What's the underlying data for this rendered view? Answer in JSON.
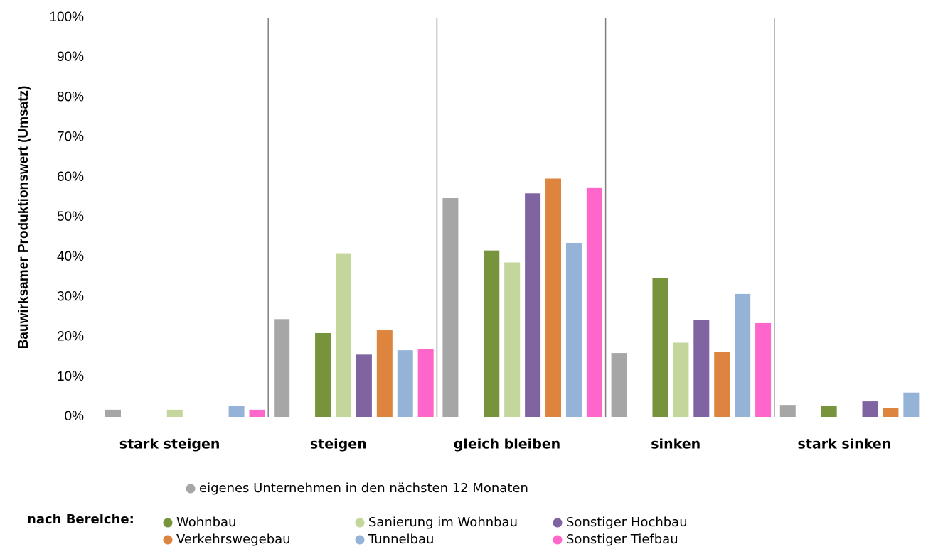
{
  "chart_data": {
    "type": "bar",
    "y_label": "Bauwirksamer Produktionswert (Umsatz)",
    "legend_title": "nach Bereiche:",
    "categories": [
      "stark steigen",
      "steigen",
      "gleich bleiben",
      "sinken",
      "stark sinken"
    ],
    "series": [
      {
        "name": "eigenes Unternehmen in den nächsten 12 Monaten",
        "color": "#a6a6a6",
        "values": [
          1.8,
          24.5,
          54.8,
          16,
          3
        ]
      },
      {
        "name": "Wohnbau",
        "color": "#77933c",
        "values": [
          0,
          21,
          41.7,
          34.7,
          2.7
        ]
      },
      {
        "name": "Sanierung im Wohnbau",
        "color": "#c3d69b",
        "values": [
          1.8,
          41,
          38.7,
          18.6,
          0
        ]
      },
      {
        "name": "Sonstiger Hochbau",
        "color": "#8064a2",
        "values": [
          0,
          15.6,
          56,
          24.2,
          3.9
        ]
      },
      {
        "name": "Verkehrswegebau",
        "color": "#dd843e",
        "values": [
          0,
          21.7,
          59.7,
          16.3,
          2.3
        ]
      },
      {
        "name": "Tunnelbau",
        "color": "#95b3d7",
        "values": [
          2.7,
          16.7,
          43.6,
          30.8,
          6.1
        ]
      },
      {
        "name": "Sonstiger Tiefbau",
        "color": "#ff66cc",
        "values": [
          1.8,
          17,
          57.5,
          23.5,
          0
        ]
      }
    ],
    "ylim": [
      0,
      100
    ],
    "yticks": [
      {
        "value": 0,
        "label": "0%"
      },
      {
        "value": 10,
        "label": "10%"
      },
      {
        "value": 20,
        "label": "20%"
      },
      {
        "value": 30,
        "label": "30%"
      },
      {
        "value": 40,
        "label": "40%"
      },
      {
        "value": 50,
        "label": "50%"
      },
      {
        "value": 60,
        "label": "60%"
      },
      {
        "value": 70,
        "label": "70%"
      },
      {
        "value": 80,
        "label": "80%"
      },
      {
        "value": 90,
        "label": "90%"
      },
      {
        "value": 100,
        "label": "100%"
      }
    ],
    "grid": false
  }
}
